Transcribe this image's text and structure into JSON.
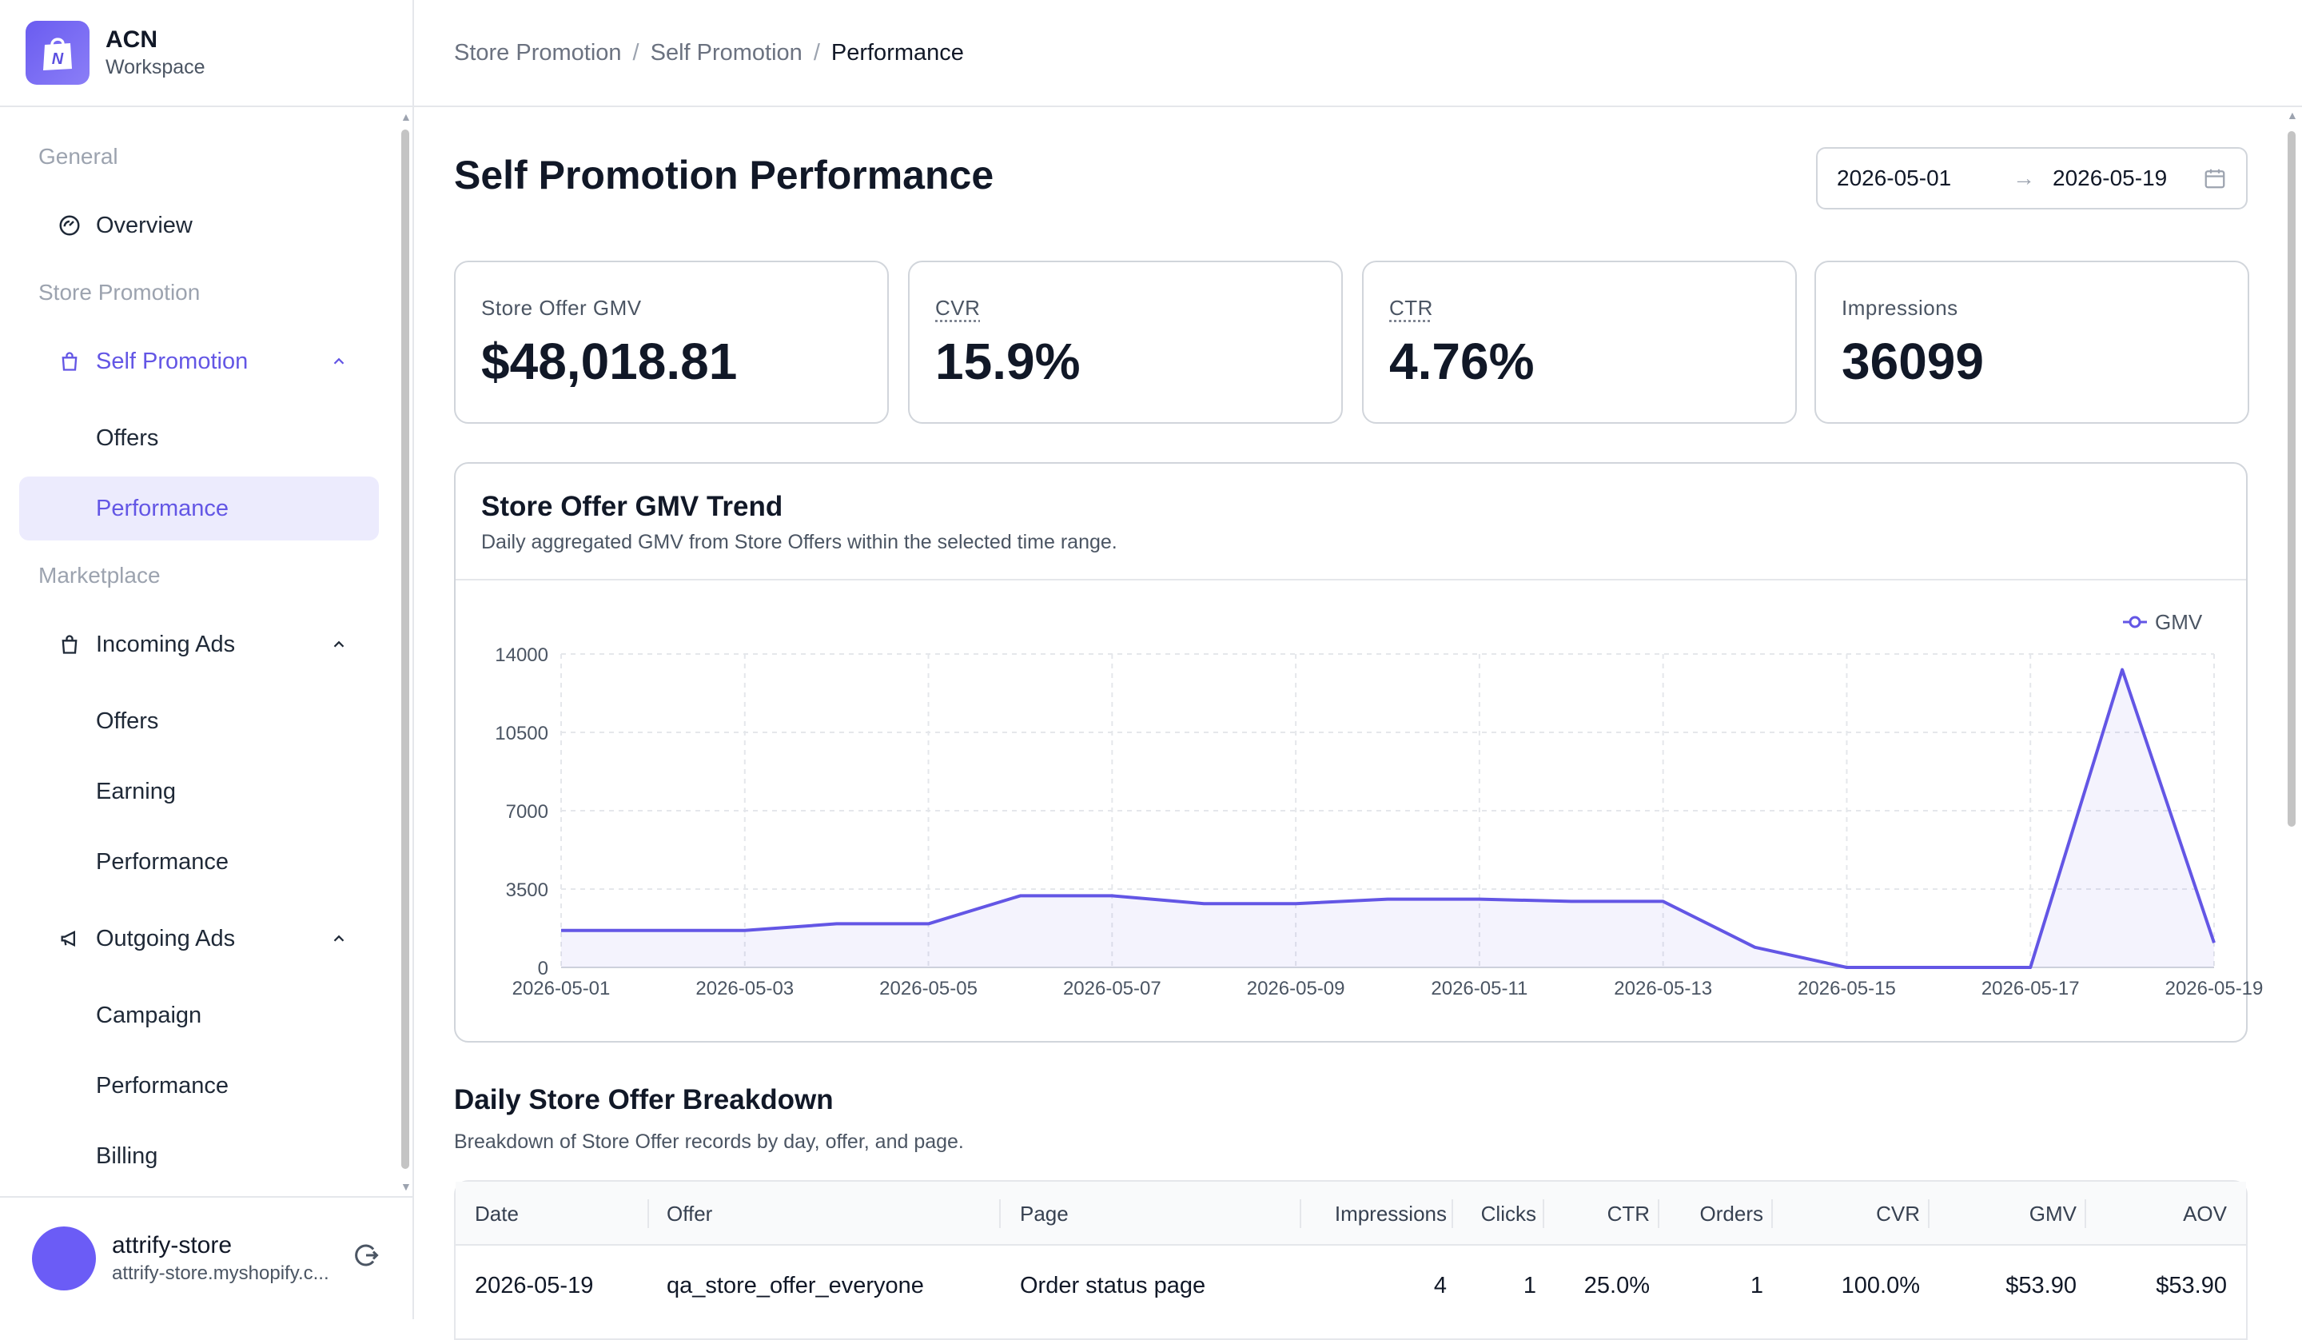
{
  "brand": {
    "name": "ACN",
    "subtitle": "Workspace",
    "logo_icon": "shopping-bag-icon"
  },
  "sidebar": {
    "sections": {
      "general": "General",
      "store_promotion": "Store Promotion",
      "marketplace": "Marketplace"
    },
    "overview": "Overview",
    "self_promotion": {
      "label": "Self Promotion",
      "items": [
        "Offers",
        "Performance"
      ]
    },
    "incoming_ads": {
      "label": "Incoming Ads",
      "items": [
        "Offers",
        "Earning",
        "Performance"
      ]
    },
    "outgoing_ads": {
      "label": "Outgoing Ads",
      "items": [
        "Campaign",
        "Performance",
        "Billing"
      ]
    }
  },
  "user": {
    "name": "attrify-store",
    "domain": "attrify-store.myshopify.c..."
  },
  "breadcrumb": [
    "Store Promotion",
    "Self Promotion",
    "Performance"
  ],
  "page": {
    "title": "Self Promotion Performance"
  },
  "date_range": {
    "start": "2026-05-01",
    "end": "2026-05-19"
  },
  "kpis": [
    {
      "label": "Store Offer GMV",
      "value": "$48,018.81"
    },
    {
      "label": "CVR",
      "value": "15.9%"
    },
    {
      "label": "CTR",
      "value": "4.76%"
    },
    {
      "label": "Impressions",
      "value": "36099"
    }
  ],
  "chart": {
    "title": "Store Offer GMV Trend",
    "subtitle": "Daily aggregated GMV from Store Offers within the selected time range."
  },
  "chart_data": {
    "type": "area",
    "series": [
      {
        "name": "GMV",
        "color": "#6356e5",
        "values": [
          1650,
          1650,
          1650,
          1950,
          1950,
          3200,
          3200,
          2850,
          2850,
          3050,
          3050,
          2950,
          2950,
          900,
          0,
          0,
          0,
          13300,
          1100
        ]
      }
    ],
    "x": [
      "2026-05-01",
      "2026-05-02",
      "2026-05-03",
      "2026-05-04",
      "2026-05-05",
      "2026-05-06",
      "2026-05-07",
      "2026-05-08",
      "2026-05-09",
      "2026-05-10",
      "2026-05-11",
      "2026-05-12",
      "2026-05-13",
      "2026-05-14",
      "2026-05-15",
      "2026-05-16",
      "2026-05-17",
      "2026-05-18",
      "2026-05-19"
    ],
    "x_tick_labels": [
      "2026-05-01",
      "2026-05-03",
      "2026-05-05",
      "2026-05-07",
      "2026-05-09",
      "2026-05-11",
      "2026-05-13",
      "2026-05-15",
      "2026-05-17",
      "2026-05-19"
    ],
    "y_ticks": [
      0,
      3500,
      7000,
      10500,
      14000
    ],
    "ylim": [
      0,
      14000
    ],
    "grid": true,
    "legend": "top-right"
  },
  "breakdown": {
    "title": "Daily Store Offer Breakdown",
    "subtitle": "Breakdown of Store Offer records by day, offer, and page.",
    "columns": [
      "Date",
      "Offer",
      "Page",
      "Impressions",
      "Clicks",
      "CTR",
      "Orders",
      "CVR",
      "GMV",
      "AOV"
    ],
    "rows": [
      [
        "2026-05-19",
        "qa_store_offer_everyone",
        "Order status page",
        "4",
        "1",
        "25.0%",
        "1",
        "100.0%",
        "$53.90",
        "$53.90"
      ]
    ]
  }
}
